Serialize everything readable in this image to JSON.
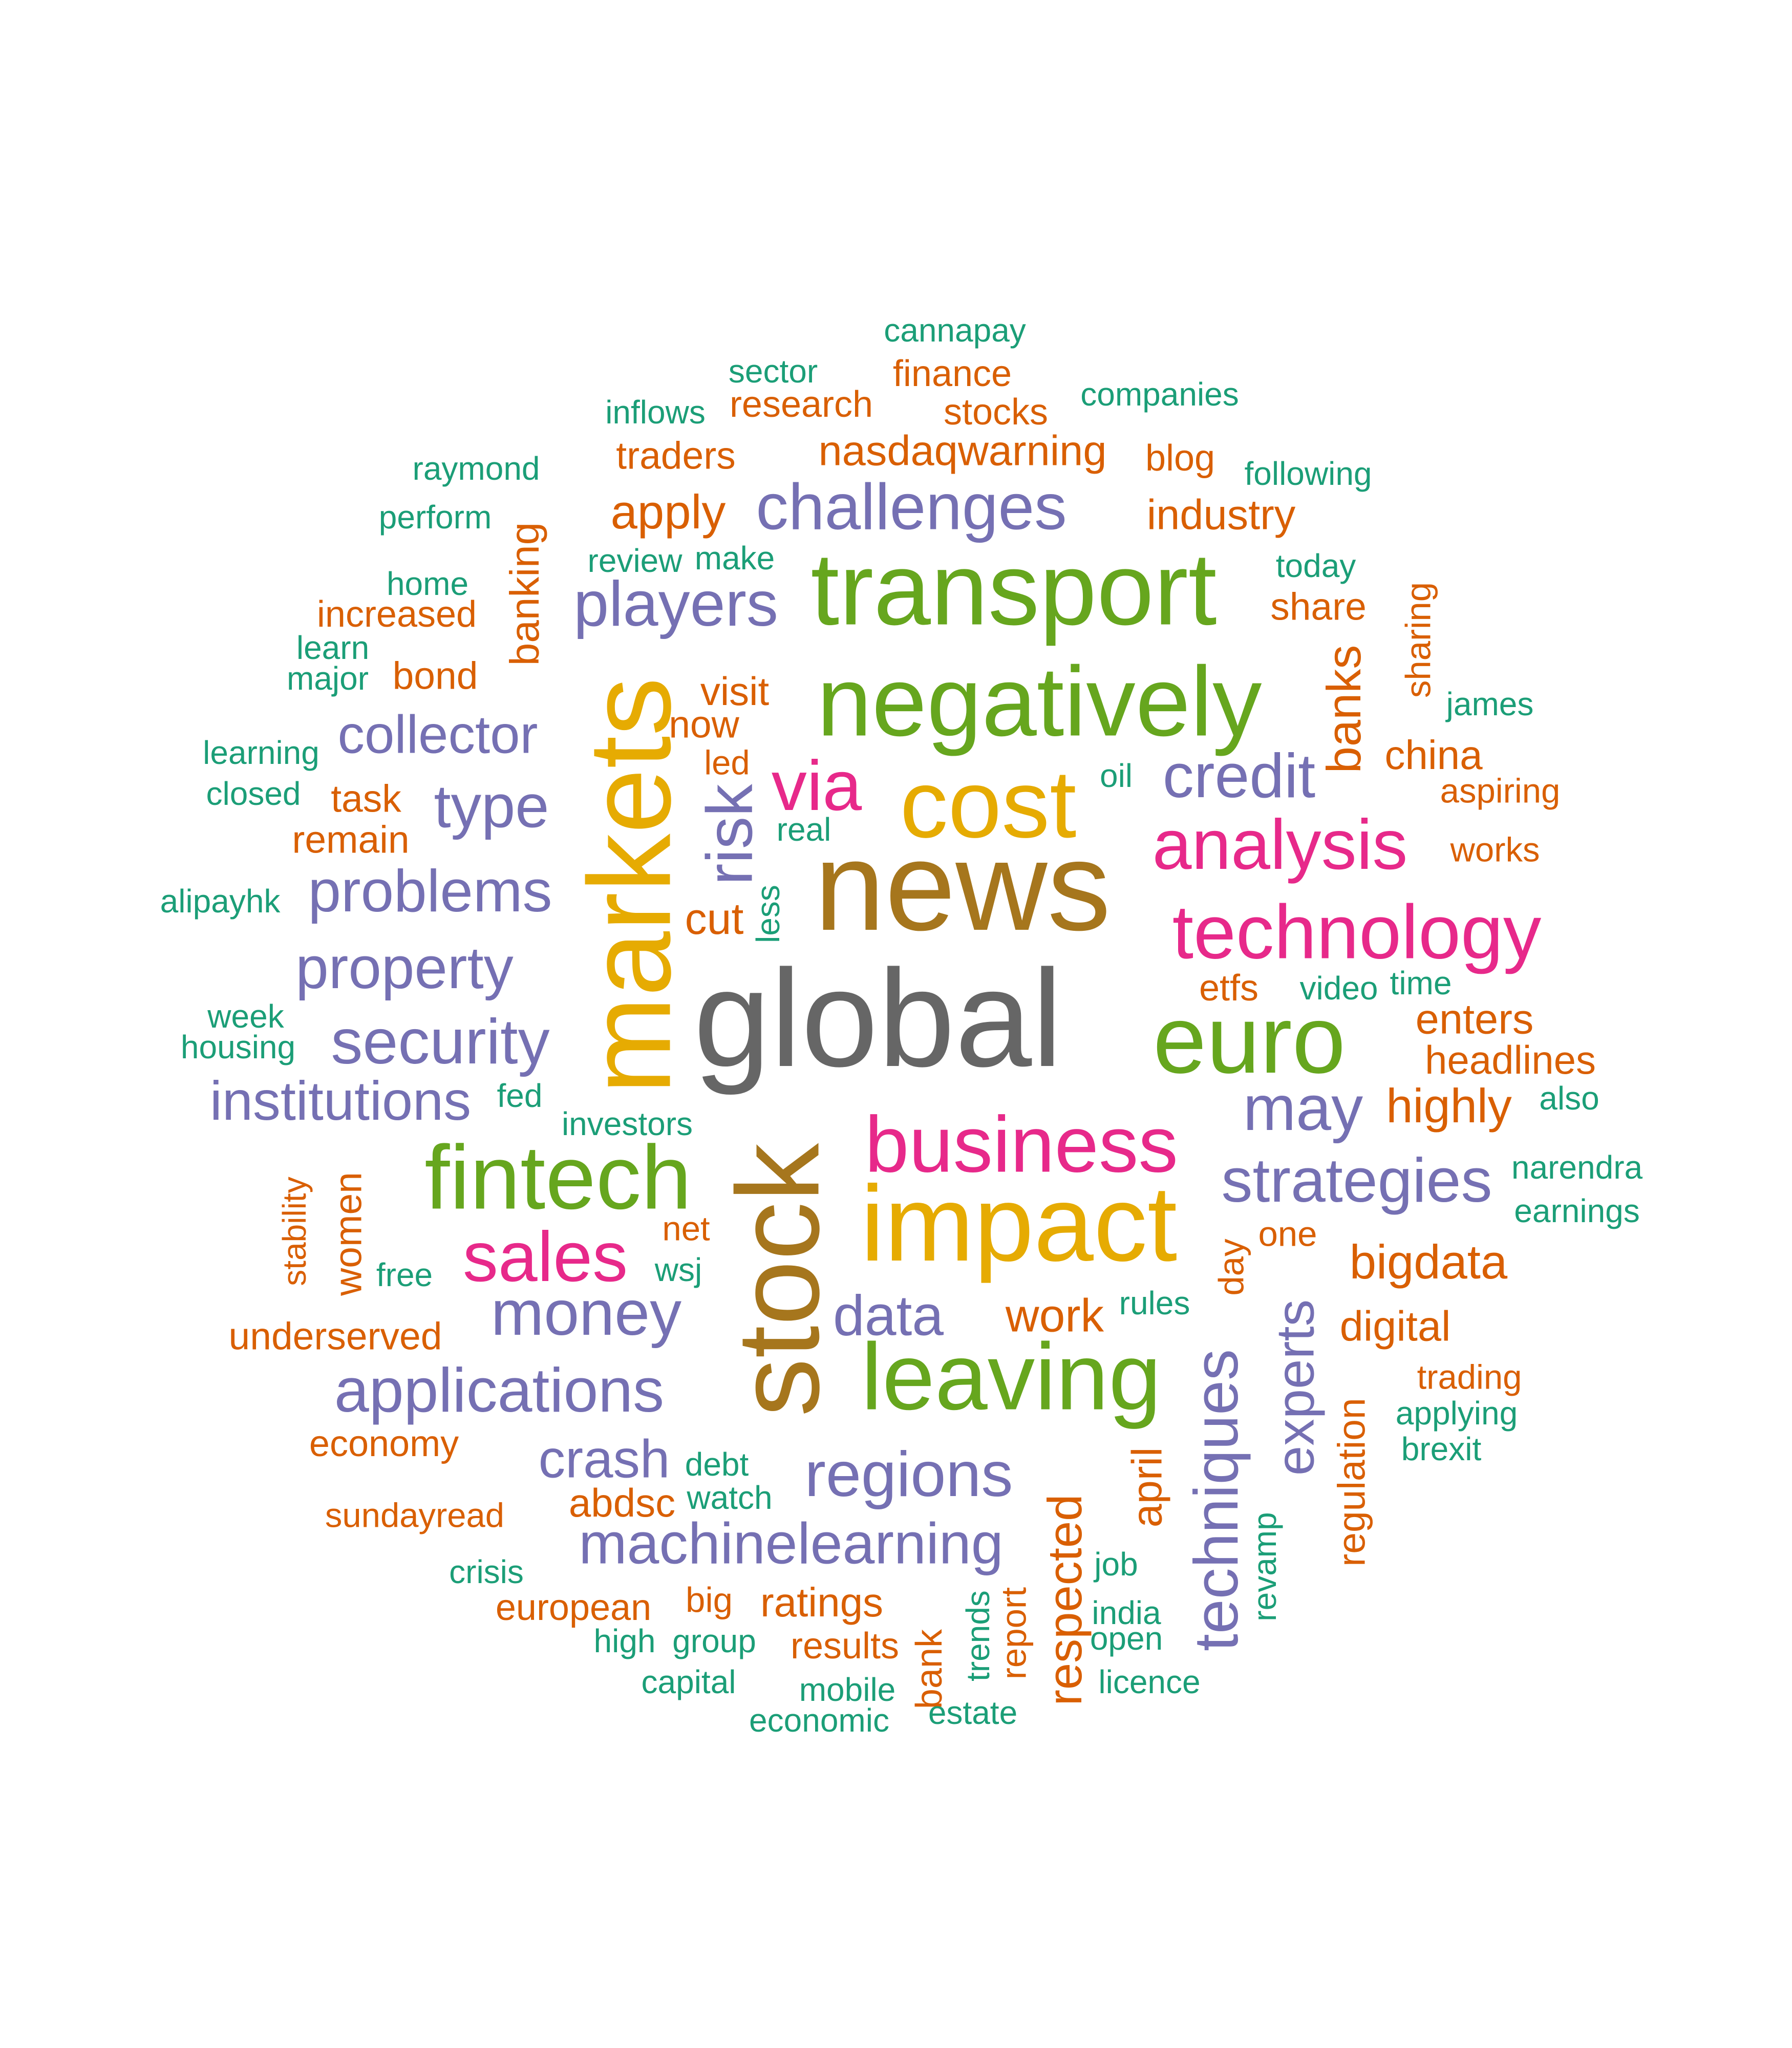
{
  "palette": {
    "teal": "#1b9e77",
    "orange": "#d95f02",
    "purple": "#7570b3",
    "pink": "#e7298a",
    "green": "#66a61e",
    "gold": "#e6ab02",
    "brown": "#a6761d",
    "gray": "#666666"
  },
  "words": [
    {
      "text": "global",
      "color": "gray",
      "weight": 1.0,
      "vertical": false
    },
    {
      "text": "news",
      "color": "brown",
      "weight": 0.92,
      "vertical": false
    },
    {
      "text": "stock",
      "color": "brown",
      "weight": 0.85,
      "vertical": true
    },
    {
      "text": "markets",
      "color": "gold",
      "weight": 0.85,
      "vertical": true
    },
    {
      "text": "impact",
      "color": "gold",
      "weight": 0.78,
      "vertical": false
    },
    {
      "text": "transport",
      "color": "green",
      "weight": 0.75,
      "vertical": false
    },
    {
      "text": "negatively",
      "color": "green",
      "weight": 0.72,
      "vertical": false
    },
    {
      "text": "cost",
      "color": "gold",
      "weight": 0.7,
      "vertical": false
    },
    {
      "text": "euro",
      "color": "green",
      "weight": 0.7,
      "vertical": false
    },
    {
      "text": "leaving",
      "color": "green",
      "weight": 0.69,
      "vertical": false
    },
    {
      "text": "fintech",
      "color": "green",
      "weight": 0.66,
      "vertical": false
    },
    {
      "text": "business",
      "color": "pink",
      "weight": 0.58,
      "vertical": false
    },
    {
      "text": "technology",
      "color": "pink",
      "weight": 0.56,
      "vertical": false
    },
    {
      "text": "analysis",
      "color": "pink",
      "weight": 0.52,
      "vertical": false
    },
    {
      "text": "via",
      "color": "pink",
      "weight": 0.52,
      "vertical": false
    },
    {
      "text": "sales",
      "color": "pink",
      "weight": 0.52,
      "vertical": false
    },
    {
      "text": "challenges",
      "color": "purple",
      "weight": 0.48,
      "vertical": false
    },
    {
      "text": "risk",
      "color": "purple",
      "weight": 0.48,
      "vertical": true
    },
    {
      "text": "players",
      "color": "purple",
      "weight": 0.47,
      "vertical": false
    },
    {
      "text": "may",
      "color": "purple",
      "weight": 0.47,
      "vertical": false
    },
    {
      "text": "regions",
      "color": "purple",
      "weight": 0.47,
      "vertical": false
    },
    {
      "text": "security",
      "color": "purple",
      "weight": 0.47,
      "vertical": false
    },
    {
      "text": "money",
      "color": "purple",
      "weight": 0.47,
      "vertical": false
    },
    {
      "text": "applications",
      "color": "purple",
      "weight": 0.46,
      "vertical": false
    },
    {
      "text": "credit",
      "color": "purple",
      "weight": 0.46,
      "vertical": false
    },
    {
      "text": "strategies",
      "color": "purple",
      "weight": 0.46,
      "vertical": false
    },
    {
      "text": "techniques",
      "color": "purple",
      "weight": 0.46,
      "vertical": true
    },
    {
      "text": "type",
      "color": "purple",
      "weight": 0.45,
      "vertical": false
    },
    {
      "text": "problems",
      "color": "purple",
      "weight": 0.44,
      "vertical": false
    },
    {
      "text": "property",
      "color": "purple",
      "weight": 0.44,
      "vertical": false
    },
    {
      "text": "machinelearning",
      "color": "purple",
      "weight": 0.43,
      "vertical": false
    },
    {
      "text": "data",
      "color": "purple",
      "weight": 0.42,
      "vertical": false
    },
    {
      "text": "institutions",
      "color": "purple",
      "weight": 0.41,
      "vertical": false
    },
    {
      "text": "collector",
      "color": "purple",
      "weight": 0.4,
      "vertical": false
    },
    {
      "text": "crash",
      "color": "purple",
      "weight": 0.4,
      "vertical": false
    },
    {
      "text": "experts",
      "color": "purple",
      "weight": 0.4,
      "vertical": true
    },
    {
      "text": "apply",
      "color": "orange",
      "weight": 0.36,
      "vertical": false
    },
    {
      "text": "banks",
      "color": "orange",
      "weight": 0.36,
      "vertical": true
    },
    {
      "text": "highly",
      "color": "orange",
      "weight": 0.36,
      "vertical": false
    },
    {
      "text": "bigdata",
      "color": "orange",
      "weight": 0.36,
      "vertical": false
    },
    {
      "text": "respected",
      "color": "orange",
      "weight": 0.36,
      "vertical": true
    },
    {
      "text": "work",
      "color": "orange",
      "weight": 0.35,
      "vertical": false
    },
    {
      "text": "cut",
      "color": "orange",
      "weight": 0.33,
      "vertical": false
    },
    {
      "text": "industry",
      "color": "orange",
      "weight": 0.32,
      "vertical": false
    },
    {
      "text": "nasdaqwarning",
      "color": "orange",
      "weight": 0.32,
      "vertical": false
    },
    {
      "text": "enters",
      "color": "orange",
      "weight": 0.32,
      "vertical": false
    },
    {
      "text": "april",
      "color": "orange",
      "weight": 0.32,
      "vertical": true
    },
    {
      "text": "digital",
      "color": "orange",
      "weight": 0.32,
      "vertical": false
    },
    {
      "text": "ratings",
      "color": "orange",
      "weight": 0.31,
      "vertical": false
    },
    {
      "text": "banking",
      "color": "orange",
      "weight": 0.31,
      "vertical": true
    },
    {
      "text": "china",
      "color": "orange",
      "weight": 0.31,
      "vertical": false
    },
    {
      "text": "headlines",
      "color": "orange",
      "weight": 0.3,
      "vertical": false
    },
    {
      "text": "visit",
      "color": "orange",
      "weight": 0.3,
      "vertical": false
    },
    {
      "text": "abdsc",
      "color": "orange",
      "weight": 0.3,
      "vertical": false
    },
    {
      "text": "regulation",
      "color": "orange",
      "weight": 0.29,
      "vertical": true
    },
    {
      "text": "traders",
      "color": "orange",
      "weight": 0.29,
      "vertical": false
    },
    {
      "text": "share",
      "color": "orange",
      "weight": 0.29,
      "vertical": false
    },
    {
      "text": "bond",
      "color": "orange",
      "weight": 0.29,
      "vertical": false
    },
    {
      "text": "task",
      "color": "orange",
      "weight": 0.29,
      "vertical": false
    },
    {
      "text": "remain",
      "color": "orange",
      "weight": 0.29,
      "vertical": false
    },
    {
      "text": "now",
      "color": "orange",
      "weight": 0.29,
      "vertical": false
    },
    {
      "text": "underserved",
      "color": "orange",
      "weight": 0.29,
      "vertical": false
    },
    {
      "text": "women",
      "color": "orange",
      "weight": 0.29,
      "vertical": true
    },
    {
      "text": "results",
      "color": "orange",
      "weight": 0.28,
      "vertical": false
    },
    {
      "text": "stocks",
      "color": "orange",
      "weight": 0.28,
      "vertical": false
    },
    {
      "text": "research",
      "color": "orange",
      "weight": 0.28,
      "vertical": false
    },
    {
      "text": "finance",
      "color": "orange",
      "weight": 0.28,
      "vertical": false
    },
    {
      "text": "increased",
      "color": "orange",
      "weight": 0.28,
      "vertical": false
    },
    {
      "text": "blog",
      "color": "orange",
      "weight": 0.28,
      "vertical": false
    },
    {
      "text": "etfs",
      "color": "orange",
      "weight": 0.28,
      "vertical": false
    },
    {
      "text": "economy",
      "color": "orange",
      "weight": 0.28,
      "vertical": false
    },
    {
      "text": "european",
      "color": "orange",
      "weight": 0.28,
      "vertical": false
    },
    {
      "text": "bank",
      "color": "orange",
      "weight": 0.28,
      "vertical": true
    },
    {
      "text": "sharing",
      "color": "orange",
      "weight": 0.27,
      "vertical": true
    },
    {
      "text": "one",
      "color": "orange",
      "weight": 0.27,
      "vertical": false
    },
    {
      "text": "day",
      "color": "orange",
      "weight": 0.27,
      "vertical": true
    },
    {
      "text": "big",
      "color": "orange",
      "weight": 0.27,
      "vertical": false
    },
    {
      "text": "report",
      "color": "orange",
      "weight": 0.27,
      "vertical": true
    },
    {
      "text": "sundayread",
      "color": "orange",
      "weight": 0.26,
      "vertical": false
    },
    {
      "text": "net",
      "color": "orange",
      "weight": 0.26,
      "vertical": false
    },
    {
      "text": "led",
      "color": "orange",
      "weight": 0.26,
      "vertical": false
    },
    {
      "text": "aspiring",
      "color": "orange",
      "weight": 0.26,
      "vertical": false
    },
    {
      "text": "works",
      "color": "orange",
      "weight": 0.26,
      "vertical": false
    },
    {
      "text": "trading",
      "color": "orange",
      "weight": 0.26,
      "vertical": false
    },
    {
      "text": "stability",
      "color": "orange",
      "weight": 0.25,
      "vertical": true
    },
    {
      "text": "cannapay",
      "color": "teal",
      "weight": 0.25,
      "vertical": false
    },
    {
      "text": "sector",
      "color": "teal",
      "weight": 0.25,
      "vertical": false
    },
    {
      "text": "inflows",
      "color": "teal",
      "weight": 0.25,
      "vertical": false
    },
    {
      "text": "companies",
      "color": "teal",
      "weight": 0.25,
      "vertical": false
    },
    {
      "text": "raymond",
      "color": "teal",
      "weight": 0.25,
      "vertical": false
    },
    {
      "text": "following",
      "color": "teal",
      "weight": 0.25,
      "vertical": false
    },
    {
      "text": "perform",
      "color": "teal",
      "weight": 0.25,
      "vertical": false
    },
    {
      "text": "review",
      "color": "teal",
      "weight": 0.25,
      "vertical": false
    },
    {
      "text": "make",
      "color": "teal",
      "weight": 0.25,
      "vertical": false
    },
    {
      "text": "today",
      "color": "teal",
      "weight": 0.25,
      "vertical": false
    },
    {
      "text": "home",
      "color": "teal",
      "weight": 0.25,
      "vertical": false
    },
    {
      "text": "learn",
      "color": "teal",
      "weight": 0.25,
      "vertical": false
    },
    {
      "text": "major",
      "color": "teal",
      "weight": 0.25,
      "vertical": false
    },
    {
      "text": "james",
      "color": "teal",
      "weight": 0.25,
      "vertical": false
    },
    {
      "text": "learning",
      "color": "teal",
      "weight": 0.25,
      "vertical": false
    },
    {
      "text": "oil",
      "color": "teal",
      "weight": 0.25,
      "vertical": false
    },
    {
      "text": "closed",
      "color": "teal",
      "weight": 0.25,
      "vertical": false
    },
    {
      "text": "real",
      "color": "teal",
      "weight": 0.25,
      "vertical": false
    },
    {
      "text": "alipayhk",
      "color": "teal",
      "weight": 0.25,
      "vertical": false
    },
    {
      "text": "less",
      "color": "teal",
      "weight": 0.25,
      "vertical": true
    },
    {
      "text": "video",
      "color": "teal",
      "weight": 0.25,
      "vertical": false
    },
    {
      "text": "time",
      "color": "teal",
      "weight": 0.25,
      "vertical": false
    },
    {
      "text": "week",
      "color": "teal",
      "weight": 0.25,
      "vertical": false
    },
    {
      "text": "housing",
      "color": "teal",
      "weight": 0.25,
      "vertical": false
    },
    {
      "text": "fed",
      "color": "teal",
      "weight": 0.25,
      "vertical": false
    },
    {
      "text": "investors",
      "color": "teal",
      "weight": 0.25,
      "vertical": false
    },
    {
      "text": "also",
      "color": "teal",
      "weight": 0.25,
      "vertical": false
    },
    {
      "text": "narendra",
      "color": "teal",
      "weight": 0.25,
      "vertical": false
    },
    {
      "text": "earnings",
      "color": "teal",
      "weight": 0.25,
      "vertical": false
    },
    {
      "text": "free",
      "color": "teal",
      "weight": 0.25,
      "vertical": false
    },
    {
      "text": "wsj",
      "color": "teal",
      "weight": 0.25,
      "vertical": false
    },
    {
      "text": "rules",
      "color": "teal",
      "weight": 0.25,
      "vertical": false
    },
    {
      "text": "applying",
      "color": "teal",
      "weight": 0.25,
      "vertical": false
    },
    {
      "text": "brexit",
      "color": "teal",
      "weight": 0.25,
      "vertical": false
    },
    {
      "text": "debt",
      "color": "teal",
      "weight": 0.25,
      "vertical": false
    },
    {
      "text": "watch",
      "color": "teal",
      "weight": 0.25,
      "vertical": false
    },
    {
      "text": "revamp",
      "color": "teal",
      "weight": 0.25,
      "vertical": true
    },
    {
      "text": "crisis",
      "color": "teal",
      "weight": 0.25,
      "vertical": false
    },
    {
      "text": "job",
      "color": "teal",
      "weight": 0.25,
      "vertical": false
    },
    {
      "text": "india",
      "color": "teal",
      "weight": 0.25,
      "vertical": false
    },
    {
      "text": "high",
      "color": "teal",
      "weight": 0.25,
      "vertical": false
    },
    {
      "text": "group",
      "color": "teal",
      "weight": 0.25,
      "vertical": false
    },
    {
      "text": "trends",
      "color": "teal",
      "weight": 0.25,
      "vertical": true
    },
    {
      "text": "open",
      "color": "teal",
      "weight": 0.25,
      "vertical": false
    },
    {
      "text": "capital",
      "color": "teal",
      "weight": 0.25,
      "vertical": false
    },
    {
      "text": "mobile",
      "color": "teal",
      "weight": 0.25,
      "vertical": false
    },
    {
      "text": "licence",
      "color": "teal",
      "weight": 0.25,
      "vertical": false
    },
    {
      "text": "estate",
      "color": "teal",
      "weight": 0.25,
      "vertical": false
    },
    {
      "text": "economic",
      "color": "teal",
      "weight": 0.25,
      "vertical": false
    }
  ]
}
